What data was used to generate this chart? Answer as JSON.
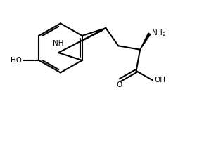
{
  "background": "#ffffff",
  "lc": "#000000",
  "lw": 1.5,
  "fs": 7.5,
  "figsize": [
    2.8,
    2.08
  ],
  "dpi": 100,
  "xlim": [
    0,
    10
  ],
  "ylim": [
    0,
    7.5
  ]
}
